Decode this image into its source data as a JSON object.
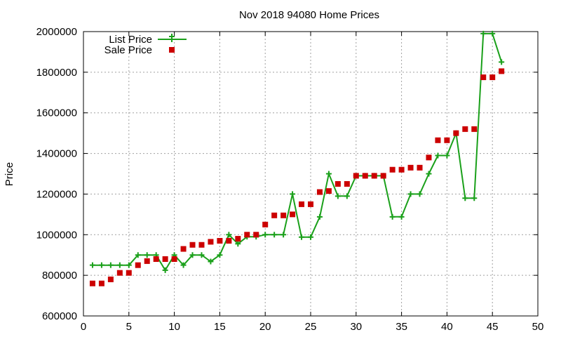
{
  "chart_data": {
    "type": "line",
    "title": "Nov 2018 94080 Home Prices",
    "xlabel": "",
    "ylabel": "Price",
    "xlim": [
      0,
      50
    ],
    "ylim": [
      600000,
      2000000
    ],
    "x_ticks": [
      "0",
      "5",
      "10",
      "15",
      "20",
      "25",
      "30",
      "35",
      "40",
      "45",
      "50"
    ],
    "y_ticks": [
      "600000",
      "800000",
      "1000000",
      "1200000",
      "1400000",
      "1600000",
      "1800000",
      "2000000"
    ],
    "grid": true,
    "legend_position": "top-left",
    "series": [
      {
        "name": "List Price",
        "style": "lines+points",
        "marker": "plus",
        "color": "#1aa01a",
        "x": [
          1,
          2,
          3,
          4,
          5,
          6,
          7,
          8,
          9,
          10,
          11,
          12,
          13,
          14,
          15,
          16,
          17,
          18,
          19,
          20,
          21,
          22,
          23,
          24,
          25,
          26,
          27,
          28,
          29,
          30,
          31,
          32,
          33,
          34,
          35,
          36,
          37,
          38,
          39,
          40,
          41,
          42,
          43,
          44,
          45,
          46
        ],
        "values": [
          850000,
          850000,
          850000,
          850000,
          850000,
          900000,
          900000,
          900000,
          825000,
          900000,
          850000,
          900000,
          900000,
          868000,
          900000,
          1000000,
          955000,
          990000,
          990000,
          1000000,
          1000000,
          1000000,
          1200000,
          988000,
          988000,
          1088000,
          1300000,
          1190000,
          1190000,
          1290000,
          1290000,
          1290000,
          1290000,
          1088000,
          1088000,
          1200000,
          1200000,
          1300000,
          1390000,
          1390000,
          1500000,
          1180000,
          1180000,
          1990000,
          1990000,
          1850000
        ]
      },
      {
        "name": "Sale Price",
        "style": "points",
        "marker": "square",
        "color": "#cc0000",
        "x": [
          1,
          2,
          3,
          4,
          5,
          6,
          7,
          8,
          9,
          10,
          11,
          12,
          13,
          14,
          15,
          16,
          17,
          18,
          19,
          20,
          21,
          22,
          23,
          24,
          25,
          26,
          27,
          28,
          29,
          30,
          31,
          32,
          33,
          34,
          35,
          36,
          37,
          38,
          39,
          40,
          41,
          42,
          43,
          44,
          45,
          46
        ],
        "values": [
          760000,
          760000,
          780000,
          812000,
          812000,
          850000,
          870000,
          880000,
          880000,
          880000,
          930000,
          950000,
          950000,
          965000,
          970000,
          970000,
          980000,
          1000000,
          1000000,
          1050000,
          1095000,
          1095000,
          1100000,
          1150000,
          1150000,
          1210000,
          1215000,
          1250000,
          1250000,
          1290000,
          1290000,
          1290000,
          1290000,
          1320000,
          1320000,
          1330000,
          1330000,
          1380000,
          1465000,
          1465000,
          1500000,
          1520000,
          1520000,
          1775000,
          1775000,
          1805000
        ]
      }
    ]
  }
}
